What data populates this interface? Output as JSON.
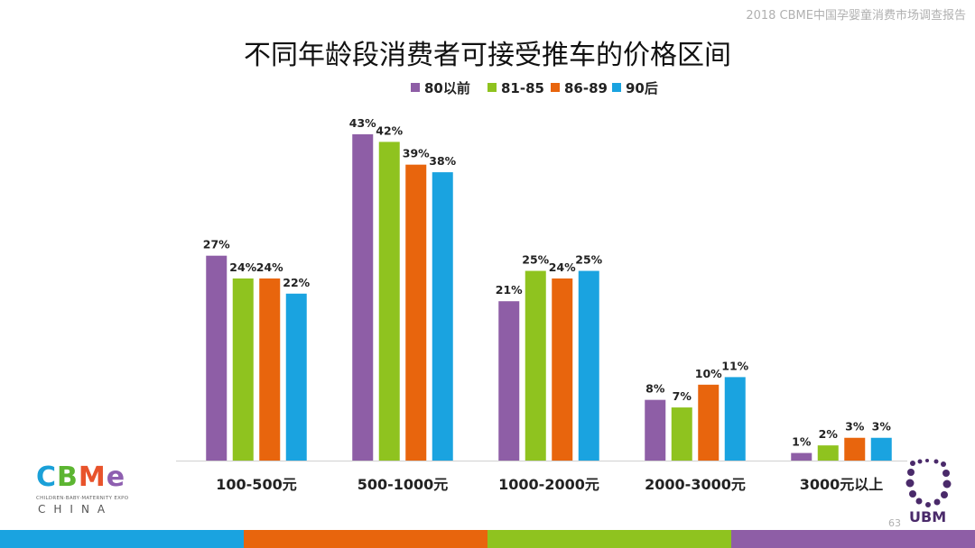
{
  "header_note": "2018 CBME中国孕婴童消费市场调查报告",
  "page_number": "63",
  "logos": {
    "left_word": [
      "C",
      "B",
      "M",
      "e"
    ],
    "left_colors": [
      "#1aa0d8",
      "#5cb531",
      "#e8532b",
      "#8e5fb0"
    ],
    "left_subtitle": "CHILDREN·BABY·MATERNITY EXPO",
    "left_bottom": "CHINA",
    "right_text": "UBM"
  },
  "bottom_bar_colors": [
    "#1aa3e0",
    "#e8650d",
    "#8fc31f",
    "#8e5ea6"
  ],
  "chart_data": {
    "type": "bar",
    "title": "不同年龄段消费者可接受推车的价格区间",
    "categories": [
      "100-500元",
      "500-1000元",
      "1000-2000元",
      "2000-3000元",
      "3000元以上"
    ],
    "series": [
      {
        "name": "80以前",
        "color": "#8e5ea6",
        "values": [
          27,
          43,
          21,
          8,
          1
        ]
      },
      {
        "name": "81-85",
        "color": "#8fc31f",
        "values": [
          24,
          42,
          25,
          7,
          2
        ]
      },
      {
        "name": "86-89",
        "color": "#e8650d",
        "values": [
          24,
          39,
          24,
          10,
          3
        ]
      },
      {
        "name": "90后",
        "color": "#1aa3e0",
        "values": [
          22,
          38,
          25,
          11,
          3
        ]
      }
    ],
    "value_suffix": "%",
    "ylim": [
      0,
      45
    ],
    "grid": false,
    "legend_position": "top-center"
  }
}
